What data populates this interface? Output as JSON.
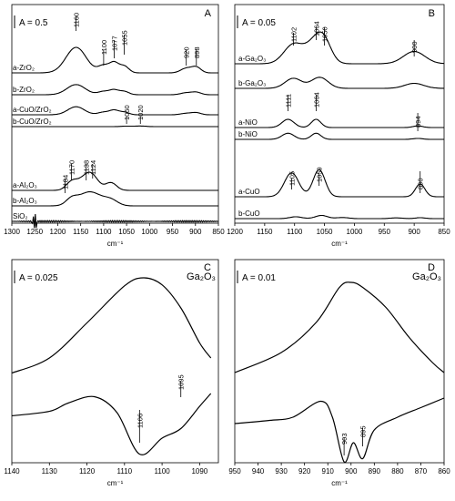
{
  "chart_data": [
    {
      "panel": "A",
      "type": "line",
      "scale_label": "A = 0.5",
      "xlabel": "cm⁻¹",
      "xlim": [
        1300,
        850
      ],
      "xticks": [
        1300,
        1250,
        1200,
        1150,
        1100,
        1050,
        1000,
        950,
        900,
        850
      ],
      "series": [
        {
          "name": "a-ZrO₂",
          "peaks": [
            {
              "x": 1160,
              "h": 1.0,
              "w": 22
            },
            {
              "x": 1100,
              "h": 0.28,
              "w": 12
            },
            {
              "x": 1077,
              "h": 0.38,
              "w": 10
            },
            {
              "x": 1055,
              "h": 0.26,
              "w": 10
            },
            {
              "x": 920,
              "h": 0.18,
              "w": 12
            },
            {
              "x": 898,
              "h": 0.22,
              "w": 10
            }
          ]
        },
        {
          "name": "b-ZrO₂",
          "peaks": [
            {
              "x": 1160,
              "h": 0.62,
              "w": 20
            },
            {
              "x": 1100,
              "h": 0.2,
              "w": 12
            },
            {
              "x": 1077,
              "h": 0.28,
              "w": 10
            },
            {
              "x": 1055,
              "h": 0.2,
              "w": 10
            },
            {
              "x": 920,
              "h": 0.12,
              "w": 12
            },
            {
              "x": 898,
              "h": 0.15,
              "w": 10
            }
          ]
        },
        {
          "name": "a-CuO/ZrO₂",
          "peaks": [
            {
              "x": 1160,
              "h": 0.55,
              "w": 18
            },
            {
              "x": 1100,
              "h": 0.18,
              "w": 12
            },
            {
              "x": 1077,
              "h": 0.3,
              "w": 10
            },
            {
              "x": 1055,
              "h": 0.18,
              "w": 10
            },
            {
              "x": 920,
              "h": 0.1,
              "w": 12
            },
            {
              "x": 898,
              "h": 0.14,
              "w": 10
            }
          ]
        },
        {
          "name": "b-CuO/ZrO₂",
          "peaks": [
            {
              "x": 1050,
              "h": 0.06,
              "w": 12
            },
            {
              "x": 1020,
              "h": 0.08,
              "w": 12
            }
          ]
        },
        {
          "name": "a-Al₂O₃",
          "peaks": [
            {
              "x": 1170,
              "h": 0.3,
              "w": 12
            },
            {
              "x": 1138,
              "h": 0.48,
              "w": 18
            },
            {
              "x": 1124,
              "h": 0.3,
              "w": 14
            },
            {
              "x": 1084,
              "h": 0.3,
              "w": 12
            }
          ]
        },
        {
          "name": "b-Al₂O₃",
          "peaks": [
            {
              "x": 1170,
              "h": 0.22,
              "w": 12
            },
            {
              "x": 1130,
              "h": 0.55,
              "w": 25
            },
            {
              "x": 1084,
              "h": 0.2,
              "w": 15
            }
          ]
        },
        {
          "name": "SiO₂",
          "peaks": []
        }
      ],
      "annotations": [
        "1160",
        "1100",
        "1077",
        "1055",
        "920",
        "898",
        "1050",
        "1020",
        "1170",
        "1138",
        "1124",
        "1184"
      ]
    },
    {
      "panel": "B",
      "type": "line",
      "scale_label": "A = 0.05",
      "xlabel": "cm⁻¹",
      "xlim": [
        1200,
        850
      ],
      "xticks": [
        1200,
        1150,
        1100,
        1050,
        1000,
        950,
        900,
        850
      ],
      "series": [
        {
          "name": "a-Ga₂O₃",
          "peaks": [
            {
              "x": 1102,
              "h": 0.7,
              "w": 16
            },
            {
              "x": 1064,
              "h": 0.8,
              "w": 16
            },
            {
              "x": 1050,
              "h": 0.5,
              "w": 12
            },
            {
              "x": 900,
              "h": 0.45,
              "w": 18
            }
          ]
        },
        {
          "name": "b-Ga₂O₃",
          "peaks": [
            {
              "x": 1102,
              "h": 0.5,
              "w": 14
            },
            {
              "x": 1058,
              "h": 0.55,
              "w": 14
            },
            {
              "x": 900,
              "h": 0.25,
              "w": 16
            }
          ]
        },
        {
          "name": "a-NiO",
          "peaks": [
            {
              "x": 1111,
              "h": 0.5,
              "w": 10
            },
            {
              "x": 1064,
              "h": 0.5,
              "w": 8
            },
            {
              "x": 894,
              "h": 0.1,
              "w": 8
            }
          ]
        },
        {
          "name": "b-NiO",
          "peaks": [
            {
              "x": 1111,
              "h": 0.45,
              "w": 10
            },
            {
              "x": 1064,
              "h": 0.45,
              "w": 8
            },
            {
              "x": 894,
              "h": 0.07,
              "w": 8
            }
          ]
        },
        {
          "name": "a-CuO",
          "peaks": [
            {
              "x": 1105,
              "h": 0.75,
              "w": 12
            },
            {
              "x": 1059,
              "h": 0.85,
              "w": 10
            },
            {
              "x": 890,
              "h": 0.4,
              "w": 8
            }
          ]
        },
        {
          "name": "b-CuO",
          "peaks": [
            {
              "x": 1098,
              "h": 0.2,
              "w": 10
            },
            {
              "x": 1055,
              "h": 0.35,
              "w": 10
            },
            {
              "x": 1020,
              "h": 0.12,
              "w": 10
            },
            {
              "x": 930,
              "h": 0.08,
              "w": 10
            },
            {
              "x": 890,
              "h": 0.1,
              "w": 8
            }
          ]
        }
      ],
      "annotations": [
        "1102",
        "1064",
        "1050",
        "900",
        "1111",
        "1064",
        "894",
        "1105",
        "1059",
        "890"
      ]
    },
    {
      "panel": "C",
      "type": "line",
      "scale_label": "A = 0.025",
      "compound": "Ga₂O₃",
      "xlabel": "cm⁻¹",
      "xlim": [
        1140,
        1085
      ],
      "xticks": [
        1140,
        1130,
        1120,
        1110,
        1100,
        1090
      ],
      "series": [
        {
          "name": "spectrum",
          "points": [
            [
              1140,
              0.05
            ],
            [
              1130,
              0.2
            ],
            [
              1120,
              0.55
            ],
            [
              1110,
              0.92
            ],
            [
              1105,
              1.0
            ],
            [
              1100,
              0.93
            ],
            [
              1095,
              0.7
            ],
            [
              1090,
              0.35
            ],
            [
              1087,
              0.2
            ]
          ]
        },
        {
          "name": "second derivative",
          "points": [
            [
              1140,
              0.05
            ],
            [
              1130,
              0.12
            ],
            [
              1125,
              0.25
            ],
            [
              1118,
              0.35
            ],
            [
              1112,
              0.1
            ],
            [
              1106,
              -0.55
            ],
            [
              1100,
              -0.3
            ],
            [
              1095,
              -0.15
            ],
            [
              1090,
              0.2
            ],
            [
              1087,
              0.4
            ]
          ]
        }
      ],
      "annotations": [
        "1106",
        "1095"
      ]
    },
    {
      "panel": "D",
      "type": "line",
      "scale_label": "A = 0.01",
      "compound": "Ga₂O₃",
      "xlabel": "cm⁻¹",
      "xlim": [
        950,
        860
      ],
      "xticks": [
        950,
        940,
        930,
        920,
        910,
        900,
        890,
        880,
        870,
        860
      ],
      "series": [
        {
          "name": "spectrum",
          "points": [
            [
              950,
              0.1
            ],
            [
              930,
              0.3
            ],
            [
              915,
              0.6
            ],
            [
              905,
              0.95
            ],
            [
              900,
              1.0
            ],
            [
              895,
              0.95
            ],
            [
              885,
              0.75
            ],
            [
              875,
              0.45
            ],
            [
              865,
              0.2
            ],
            [
              860,
              0.1
            ]
          ]
        },
        {
          "name": "second derivative",
          "points": [
            [
              950,
              0.0
            ],
            [
              935,
              0.05
            ],
            [
              925,
              0.1
            ],
            [
              913,
              0.35
            ],
            [
              908,
              0.1
            ],
            [
              903,
              -0.6
            ],
            [
              899,
              -0.3
            ],
            [
              895,
              -0.55
            ],
            [
              890,
              -0.1
            ],
            [
              880,
              0.1
            ],
            [
              870,
              0.25
            ],
            [
              860,
              0.4
            ]
          ]
        }
      ],
      "annotations": [
        "903",
        "895"
      ]
    }
  ]
}
